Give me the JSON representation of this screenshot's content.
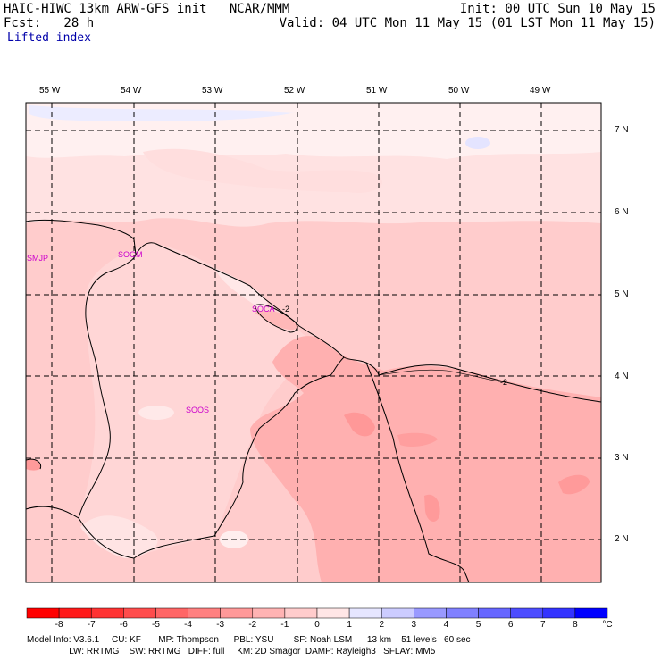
{
  "header": {
    "model_line": "HAIC-HIWC 13km ARW-GFS init   NCAR/MMM",
    "fcst_line": "Fcst:   28 h",
    "field_name": "Lifted index",
    "init_line": "Init: 00 UTC Sun 10 May 15",
    "valid_line": "Valid: 04 UTC Mon 11 May 15 (01 LST Mon 11 May 15)"
  },
  "map": {
    "lon_labels": [
      "55 W",
      "54 W",
      "53 W",
      "52 W",
      "51 W",
      "50 W",
      "49 W"
    ],
    "lat_labels": [
      "7 N",
      "6 N",
      "5 N",
      "4 N",
      "3 N",
      "2 N"
    ],
    "stations": [
      "SMJP",
      "SOGM",
      "SOCA",
      "SOOS"
    ],
    "contour_labels": [
      "-2",
      "-2"
    ],
    "colors": {
      "fill_neg1": "#ffe0e0",
      "fill_neg2": "#ffcccc",
      "fill_neg3": "#ffaaaa",
      "fill_neg4": "#ff8c8c",
      "fill_pos1": "#e0e0ff",
      "station": "#cc00cc"
    }
  },
  "colorbar": {
    "ticks": [
      "-8",
      "-7",
      "-6",
      "-5",
      "-4",
      "-3",
      "-2",
      "-1",
      "0",
      "1",
      "2",
      "3",
      "4",
      "5",
      "6",
      "7",
      "8"
    ],
    "unit": "°C",
    "colors": [
      "#ff0000",
      "#ff1a1a",
      "#ff3333",
      "#ff4d4d",
      "#ff6666",
      "#ff8080",
      "#ff9999",
      "#ffb3b3",
      "#ffcccc",
      "#ffe6e6",
      "#e6e6ff",
      "#ccccff",
      "#9999ff",
      "#8080ff",
      "#6666ff",
      "#4d4dff",
      "#3333ff",
      "#0000ff"
    ]
  },
  "model_info": {
    "line1": "Model Info: V3.6.1     CU: KF       MP: Thompson      PBL: YSU        SF: Noah LSM      13 km    51 levels   60 sec",
    "line2": "                 LW: RRTMG    SW: RRTMG   DIFF: full     KM: 2D Smagor  DAMP: Rayleigh3   SFLAY: MM5"
  }
}
